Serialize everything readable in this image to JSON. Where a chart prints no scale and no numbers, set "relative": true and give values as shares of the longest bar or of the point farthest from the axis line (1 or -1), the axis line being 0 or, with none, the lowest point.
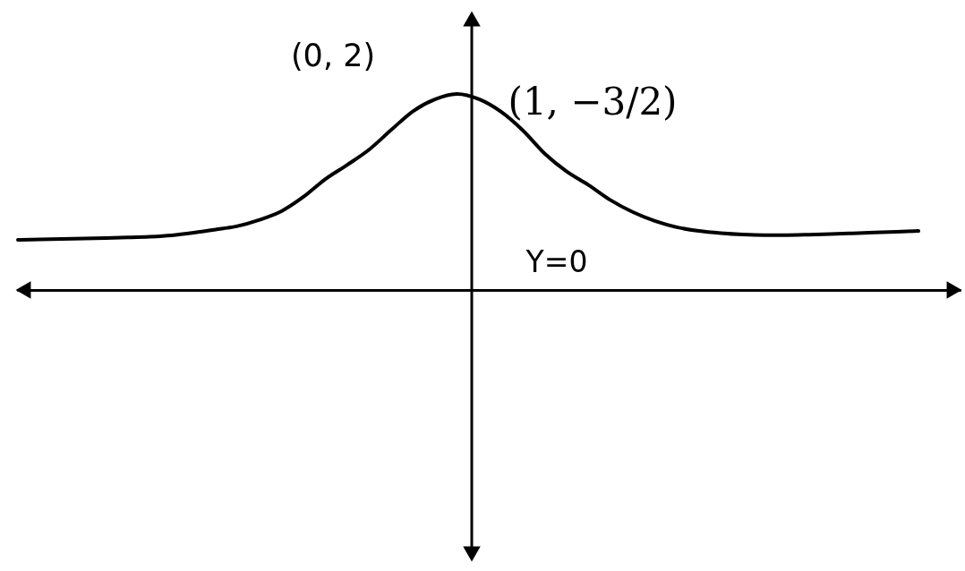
{
  "chart_data": {
    "type": "line",
    "relative": true,
    "color": "#000000",
    "categories": [
      null,
      null,
      null,
      null,
      null,
      null,
      null,
      null,
      null,
      null,
      null,
      null,
      null,
      null,
      null,
      null,
      null,
      null,
      null,
      null,
      null,
      null,
      null,
      null,
      null,
      null,
      null,
      null,
      null,
      null,
      null,
      null,
      null,
      null,
      null,
      null,
      null,
      null,
      null,
      null,
      null,
      null
    ],
    "values": [
      0.256,
      0.258,
      0.26,
      0.263,
      0.265,
      0.268,
      0.272,
      0.279,
      0.292,
      0.308,
      0.326,
      0.358,
      0.402,
      0.475,
      0.566,
      0.639,
      0.717,
      0.817,
      0.913,
      0.973,
      1,
      0.973,
      0.909,
      0.813,
      0.694,
      0.603,
      0.534,
      0.457,
      0.397,
      0.352,
      0.32,
      0.301,
      0.29,
      0.283,
      0.28,
      0.28,
      0.282,
      0.285,
      0.289,
      0.293,
      0.297,
      0.301
    ],
    "annotations": [
      "(0, 2)",
      "(1, −3/2)",
      "Y=0"
    ]
  }
}
